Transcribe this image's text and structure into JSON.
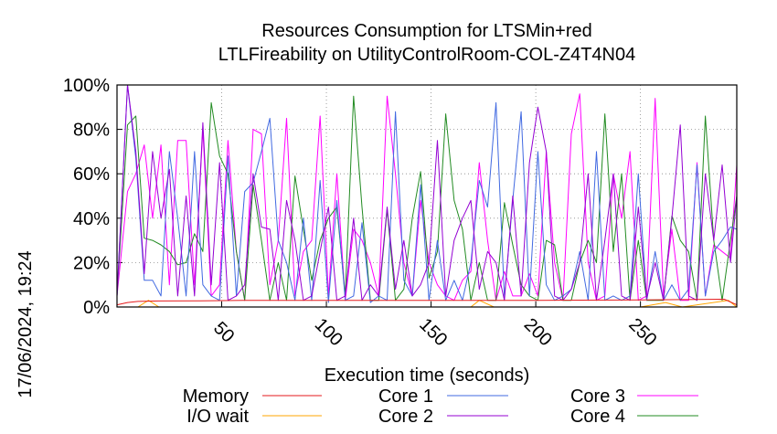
{
  "chart_data": {
    "type": "line",
    "title": "Resources Consumption for LTSMin+red",
    "subtitle": "LTLFireability on UtilityControlRoom-COL-Z4T4N04",
    "xlabel": "Execution time (seconds)",
    "ylabel": "",
    "timestamp": "17/06/2024, 19:24",
    "xlim": [
      0,
      296
    ],
    "ylim": [
      0,
      100
    ],
    "x_ticks": [
      {
        "value": 50,
        "label": "50"
      },
      {
        "value": 100,
        "label": "100"
      },
      {
        "value": 150,
        "label": "150"
      },
      {
        "value": 200,
        "label": "200"
      },
      {
        "value": 250,
        "label": "250"
      }
    ],
    "y_ticks": [
      {
        "value": 0,
        "label": "0%"
      },
      {
        "value": 20,
        "label": "20%"
      },
      {
        "value": 40,
        "label": "40%"
      },
      {
        "value": 60,
        "label": "60%"
      },
      {
        "value": 80,
        "label": "80%"
      },
      {
        "value": 100,
        "label": "100%"
      }
    ],
    "grid": true,
    "legend_position": "bottom",
    "series": [
      {
        "name": "Memory",
        "color": "#e41a1c",
        "x": [
          0,
          5,
          10,
          20,
          40,
          60,
          100,
          150,
          200,
          250,
          290,
          296
        ],
        "values": [
          1,
          2,
          2.5,
          2.7,
          2.8,
          3,
          3,
          3,
          3,
          3.2,
          3.5,
          1
        ]
      },
      {
        "name": "I/O wait",
        "color": "#ffa500",
        "x": [
          0,
          10,
          15,
          20,
          50,
          100,
          150,
          169,
          173,
          180,
          200,
          250,
          262,
          270,
          292,
          296
        ],
        "values": [
          0,
          0,
          3,
          0,
          0,
          0,
          0,
          0,
          3,
          0,
          0,
          0,
          2,
          0,
          3,
          0
        ]
      },
      {
        "name": "Core 1",
        "color": "#4169e1",
        "x": [
          0,
          5,
          9,
          13,
          17,
          21,
          25,
          29,
          33,
          37,
          41,
          45,
          49,
          53,
          57,
          61,
          65,
          69,
          73,
          77,
          81,
          85,
          89,
          93,
          97,
          101,
          105,
          109,
          113,
          117,
          121,
          125,
          129,
          133,
          137,
          141,
          145,
          149,
          153,
          157,
          161,
          165,
          169,
          173,
          177,
          181,
          185,
          189,
          193,
          197,
          201,
          205,
          209,
          213,
          217,
          221,
          225,
          229,
          233,
          237,
          241,
          245,
          249,
          253,
          257,
          261,
          265,
          269,
          273,
          277,
          281,
          285,
          289,
          293,
          296
        ],
        "values": [
          5,
          100,
          67,
          12,
          12,
          5,
          70,
          40,
          5,
          70,
          10,
          5,
          3,
          68,
          5,
          52,
          56,
          70,
          85,
          30,
          20,
          3,
          40,
          3,
          57,
          2,
          48,
          3,
          5,
          38,
          2,
          5,
          3,
          88,
          12,
          5,
          55,
          3,
          30,
          3,
          12,
          3,
          20,
          57,
          45,
          92,
          4,
          48,
          88,
          5,
          70,
          10,
          3,
          5,
          8,
          25,
          3,
          70,
          3,
          5,
          3,
          5,
          60,
          3,
          25,
          3,
          10,
          3,
          8,
          64,
          5,
          25,
          30,
          36,
          35
        ]
      },
      {
        "name": "Core 2",
        "color": "#9400d3",
        "x": [
          0,
          5,
          9,
          13,
          17,
          21,
          25,
          29,
          33,
          37,
          41,
          45,
          49,
          53,
          57,
          61,
          65,
          69,
          73,
          77,
          81,
          85,
          89,
          93,
          97,
          101,
          105,
          109,
          113,
          117,
          121,
          125,
          129,
          133,
          137,
          141,
          145,
          149,
          153,
          157,
          161,
          165,
          169,
          173,
          177,
          181,
          185,
          189,
          193,
          197,
          201,
          205,
          209,
          213,
          217,
          221,
          225,
          229,
          233,
          237,
          241,
          245,
          249,
          253,
          257,
          261,
          265,
          269,
          273,
          277,
          281,
          285,
          289,
          293,
          296
        ],
        "values": [
          5,
          100,
          70,
          15,
          70,
          40,
          62,
          5,
          50,
          5,
          83,
          10,
          65,
          3,
          5,
          10,
          60,
          36,
          35,
          3,
          48,
          30,
          3,
          5,
          25,
          45,
          3,
          5,
          40,
          3,
          10,
          5,
          45,
          8,
          30,
          5,
          10,
          20,
          75,
          5,
          30,
          40,
          48,
          8,
          25,
          20,
          3,
          50,
          5,
          65,
          90,
          70,
          5,
          3,
          8,
          20,
          60,
          3,
          30,
          60,
          5,
          3,
          45,
          4,
          20,
          3,
          40,
          82,
          5,
          3,
          60,
          30,
          64,
          20,
          50
        ]
      },
      {
        "name": "Core 3",
        "color": "#ff00ff",
        "x": [
          0,
          5,
          9,
          13,
          17,
          21,
          25,
          29,
          33,
          37,
          41,
          45,
          49,
          53,
          57,
          61,
          65,
          69,
          73,
          77,
          81,
          85,
          89,
          93,
          97,
          101,
          105,
          109,
          113,
          117,
          121,
          125,
          129,
          133,
          137,
          141,
          145,
          149,
          153,
          157,
          161,
          165,
          169,
          173,
          177,
          181,
          185,
          189,
          193,
          197,
          201,
          205,
          209,
          213,
          217,
          221,
          225,
          229,
          233,
          237,
          241,
          245,
          249,
          253,
          257,
          261,
          265,
          269,
          273,
          277,
          281,
          285,
          289,
          293,
          296
        ],
        "values": [
          5,
          52,
          60,
          73,
          40,
          73,
          10,
          75,
          75,
          10,
          80,
          5,
          10,
          75,
          25,
          3,
          80,
          78,
          10,
          30,
          85,
          5,
          25,
          30,
          86,
          5,
          60,
          3,
          35,
          30,
          20,
          5,
          95,
          60,
          20,
          5,
          48,
          20,
          10,
          5,
          3,
          12,
          16,
          65,
          30,
          3,
          16,
          5,
          5,
          15,
          5,
          70,
          20,
          3,
          78,
          96,
          20,
          3,
          5,
          60,
          40,
          70,
          3,
          5,
          94,
          5,
          35,
          3,
          3,
          65,
          5,
          28,
          25,
          22,
          64
        ]
      },
      {
        "name": "Core 4",
        "color": "#228b22",
        "x": [
          0,
          5,
          9,
          13,
          17,
          21,
          25,
          29,
          33,
          37,
          41,
          45,
          49,
          53,
          57,
          61,
          65,
          69,
          73,
          77,
          81,
          85,
          89,
          93,
          97,
          101,
          105,
          109,
          113,
          117,
          121,
          125,
          129,
          133,
          137,
          141,
          145,
          149,
          153,
          157,
          161,
          165,
          169,
          173,
          177,
          181,
          185,
          189,
          193,
          197,
          201,
          205,
          209,
          213,
          217,
          221,
          225,
          229,
          233,
          237,
          241,
          245,
          249,
          253,
          257,
          261,
          265,
          269,
          273,
          277,
          281,
          285,
          289,
          293,
          296
        ],
        "values": [
          5,
          82,
          86,
          31,
          30,
          28,
          25,
          19,
          20,
          33,
          25,
          92,
          68,
          60,
          25,
          3,
          55,
          30,
          3,
          20,
          3,
          59,
          35,
          12,
          30,
          40,
          45,
          5,
          95,
          45,
          3,
          3,
          44,
          3,
          8,
          40,
          61,
          13,
          25,
          87,
          48,
          35,
          3,
          20,
          3,
          3,
          47,
          28,
          10,
          5,
          3,
          30,
          28,
          3,
          3,
          20,
          30,
          20,
          87,
          25,
          60,
          3,
          30,
          3,
          3,
          3,
          41,
          30,
          25,
          3,
          86,
          30,
          3,
          30,
          50
        ]
      }
    ]
  }
}
